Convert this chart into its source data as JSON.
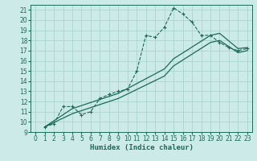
{
  "xlabel": "Humidex (Indice chaleur)",
  "bg_color": "#cceae7",
  "grid_color": "#aad4d0",
  "line_color": "#1a6b5a",
  "xlim": [
    -0.5,
    23.5
  ],
  "ylim": [
    9,
    21.5
  ],
  "xticks": [
    0,
    1,
    2,
    3,
    4,
    5,
    6,
    7,
    8,
    9,
    10,
    11,
    12,
    13,
    14,
    15,
    16,
    17,
    18,
    19,
    20,
    21,
    22,
    23
  ],
  "yticks": [
    9,
    10,
    11,
    12,
    13,
    14,
    15,
    16,
    17,
    18,
    19,
    20,
    21
  ],
  "line1_x": [
    1,
    2,
    3,
    4,
    5,
    6,
    7,
    8,
    9,
    10,
    11,
    12,
    13,
    14,
    15,
    16,
    17,
    18,
    19,
    20,
    21,
    22,
    23
  ],
  "line1_y": [
    9.5,
    9.8,
    11.5,
    11.5,
    10.7,
    11.0,
    12.3,
    12.7,
    13.0,
    13.2,
    15.0,
    18.5,
    18.3,
    19.3,
    21.2,
    20.6,
    19.8,
    18.5,
    18.5,
    17.8,
    17.3,
    17.0,
    17.2
  ],
  "line2_x": [
    1,
    4,
    9,
    14,
    15,
    19,
    20,
    22,
    23
  ],
  "line2_y": [
    9.5,
    11.3,
    12.8,
    15.2,
    16.2,
    18.5,
    18.7,
    17.2,
    17.3
  ],
  "line3_x": [
    1,
    4,
    9,
    14,
    15,
    19,
    20,
    22,
    23
  ],
  "line3_y": [
    9.5,
    10.8,
    12.3,
    14.5,
    15.5,
    17.8,
    18.0,
    16.8,
    17.0
  ],
  "xlabel_fontsize": 6.5,
  "tick_fontsize": 5.5
}
